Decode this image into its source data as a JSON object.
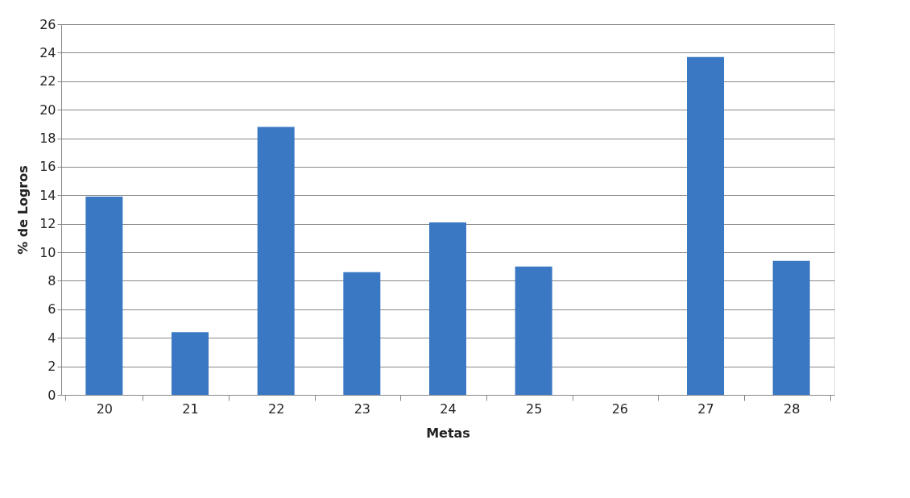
{
  "chart_data": {
    "type": "bar",
    "xlabel": "Metas",
    "ylabel": "% de Logros",
    "categories": [
      "20",
      "21",
      "22",
      "23",
      "24",
      "25",
      "26",
      "27",
      "28"
    ],
    "values": [
      13.9,
      4.4,
      18.8,
      8.6,
      12.1,
      9.0,
      0,
      23.7,
      9.4
    ],
    "color": "#3a78c4",
    "ylim": [
      0,
      26
    ],
    "yticks": [
      0,
      2,
      4,
      6,
      8,
      10,
      12,
      14,
      16,
      18,
      20,
      22,
      24,
      26
    ],
    "grid": "y"
  }
}
